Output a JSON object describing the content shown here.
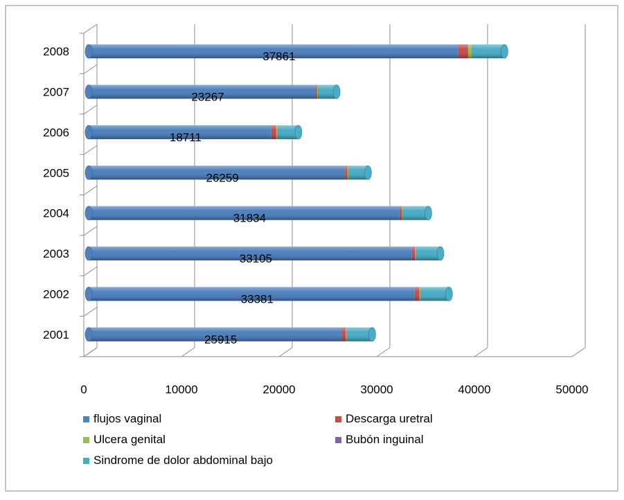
{
  "chart_data": {
    "type": "bar",
    "orientation": "horizontal",
    "stacked": true,
    "style": "3d-cylinder",
    "title": "",
    "xlabel": "",
    "ylabel": "",
    "xlim": [
      0,
      50000
    ],
    "x_ticks": [
      "0",
      "10000",
      "20000",
      "30000",
      "40000",
      "50000"
    ],
    "categories": [
      "2001",
      "2002",
      "2003",
      "2004",
      "2005",
      "2006",
      "2007",
      "2008"
    ],
    "grid": "vertical",
    "legend_position": "bottom",
    "series": [
      {
        "name": "flujos vaginal",
        "color": "#4f81bd",
        "values": [
          25915,
          33381,
          33105,
          31834,
          26259,
          18711,
          23267,
          37861
        ],
        "show_labels": true
      },
      {
        "name": "Descarga uretral",
        "color": "#c0504d",
        "values": [
          400,
          500,
          300,
          250,
          250,
          500,
          150,
          1000
        ]
      },
      {
        "name": "Ulcera genital",
        "color": "#9bbb59",
        "values": [
          100,
          100,
          100,
          80,
          80,
          150,
          60,
          400
        ]
      },
      {
        "name": "Bubón inguinal",
        "color": "#8064a2",
        "values": [
          20,
          20,
          20,
          20,
          20,
          20,
          20,
          20
        ]
      },
      {
        "name": "Sindrome de dolor abdominal bajo",
        "color": "#4bacc6",
        "values": [
          2600,
          2900,
          2500,
          2600,
          2000,
          2100,
          1900,
          3300
        ]
      }
    ]
  }
}
